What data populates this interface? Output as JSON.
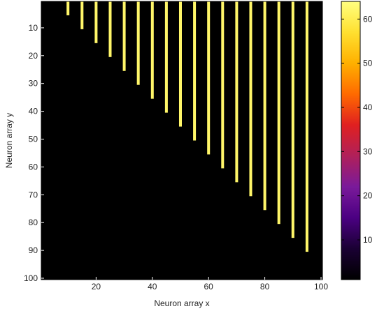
{
  "chart_data": {
    "type": "heatmap",
    "xlabel": "Neuron array x",
    "ylabel": "Neuron array y",
    "xlim": [
      1,
      100
    ],
    "ylim": [
      1,
      100
    ],
    "y_reversed": true,
    "x_ticks": [
      20,
      40,
      60,
      80,
      100
    ],
    "y_ticks": [
      10,
      20,
      30,
      40,
      50,
      60,
      70,
      80,
      90,
      100
    ],
    "colorbar": {
      "colormap": "hot-purple",
      "range": [
        1,
        64
      ],
      "ticks": [
        10,
        20,
        30,
        40,
        50,
        60
      ],
      "stops": [
        "#000000",
        "#1a0033",
        "#4b0082",
        "#7a1a9a",
        "#b0205a",
        "#e02020",
        "#ff6a00",
        "#ffb000",
        "#ffe030",
        "#ffff80"
      ]
    },
    "background_value": 1,
    "stripe_value": 62,
    "stripes": [
      {
        "x": 10,
        "y_top": 1,
        "y_bottom": 5
      },
      {
        "x": 15,
        "y_top": 1,
        "y_bottom": 10
      },
      {
        "x": 20,
        "y_top": 1,
        "y_bottom": 15
      },
      {
        "x": 25,
        "y_top": 1,
        "y_bottom": 20
      },
      {
        "x": 30,
        "y_top": 1,
        "y_bottom": 25
      },
      {
        "x": 35,
        "y_top": 1,
        "y_bottom": 30
      },
      {
        "x": 40,
        "y_top": 1,
        "y_bottom": 35
      },
      {
        "x": 45,
        "y_top": 1,
        "y_bottom": 40
      },
      {
        "x": 50,
        "y_top": 1,
        "y_bottom": 45
      },
      {
        "x": 55,
        "y_top": 1,
        "y_bottom": 50
      },
      {
        "x": 60,
        "y_top": 1,
        "y_bottom": 55
      },
      {
        "x": 65,
        "y_top": 1,
        "y_bottom": 60
      },
      {
        "x": 70,
        "y_top": 1,
        "y_bottom": 65
      },
      {
        "x": 75,
        "y_top": 1,
        "y_bottom": 70
      },
      {
        "x": 80,
        "y_top": 1,
        "y_bottom": 75
      },
      {
        "x": 85,
        "y_top": 1,
        "y_bottom": 80
      },
      {
        "x": 90,
        "y_top": 1,
        "y_bottom": 85
      },
      {
        "x": 95,
        "y_top": 1,
        "y_bottom": 90
      }
    ]
  }
}
